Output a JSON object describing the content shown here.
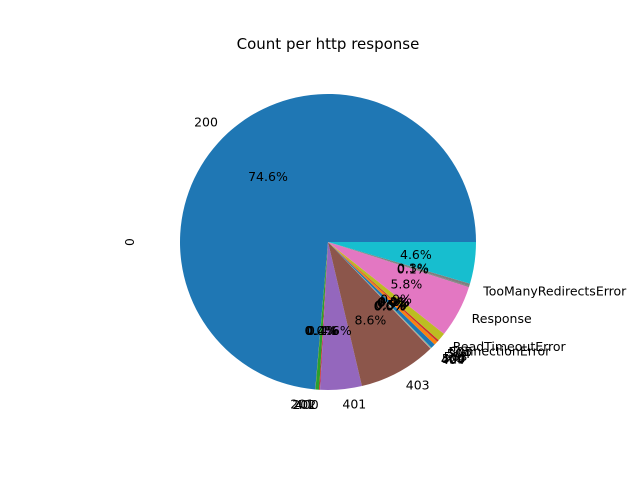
{
  "chart_data": {
    "type": "pie",
    "title": "Count per http response",
    "ylabel": "0",
    "start_angle_deg": 0,
    "direction": "counterclockwise",
    "slices": [
      {
        "label": "200",
        "value": 74.6,
        "pct_label": "74.6%",
        "color": "#1f77b4"
      },
      {
        "label": "201",
        "value": 0.02,
        "pct_label": "0.0%",
        "color": "#ff7f0e"
      },
      {
        "label": "202",
        "value": 0.4,
        "pct_label": "0.4%",
        "color": "#2ca02c"
      },
      {
        "label": "400",
        "value": 0.1,
        "pct_label": "0.1%",
        "color": "#d62728"
      },
      {
        "label": "401",
        "value": 4.6,
        "pct_label": "4.6%",
        "color": "#9467bd"
      },
      {
        "label": "403",
        "value": 8.6,
        "pct_label": "8.6%",
        "color": "#8c564b"
      },
      {
        "label": "404",
        "value": 0.04,
        "pct_label": "0.0%",
        "color": "#e377c2"
      },
      {
        "label": "409",
        "value": 0.04,
        "pct_label": "0.0%",
        "color": "#7f7f7f"
      },
      {
        "label": "429",
        "value": 0.04,
        "pct_label": "0.0%",
        "color": "#bcbd22"
      },
      {
        "label": "500",
        "value": 0.04,
        "pct_label": "0.0%",
        "color": "#17becf"
      },
      {
        "label": "503",
        "value": 0.5,
        "pct_label": "0.5%",
        "color": "#1f77b4"
      },
      {
        "label": "504",
        "value": 0.4,
        "pct_label": "0.4%",
        "color": "#ff7f0e"
      },
      {
        "label": "505",
        "value": 0.04,
        "pct_label": "0.0%",
        "color": "#2ca02c"
      },
      {
        "label": "ConnectionError",
        "value": 0.2,
        "pct_label": "0.2%",
        "color": "#d62728"
      },
      {
        "label": "ReadTimeoutError",
        "value": 0.9,
        "pct_label": "0.9%",
        "color": "#bcbd22"
      },
      {
        "label": "Response",
        "value": 5.8,
        "pct_label": "5.8%",
        "color": "#e377c2"
      },
      {
        "label": "TooManyRedirectsError",
        "value": 0.1,
        "pct_label": "0.1%",
        "color": "#7f7f7f"
      },
      {
        "label": "",
        "value": 0.3,
        "pct_label": "0.3%",
        "color": "#7f7f7f"
      },
      {
        "label": "",
        "value": 4.6,
        "pct_label": "4.6%",
        "color": "#17becf"
      }
    ]
  }
}
